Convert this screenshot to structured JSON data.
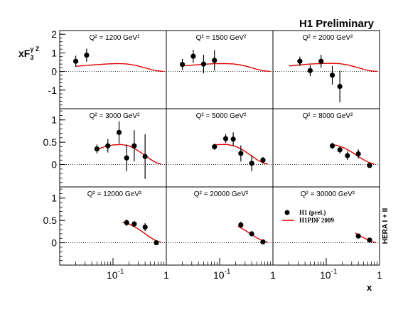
{
  "header": {
    "title": "H1 Preliminary",
    "y_axis_label_main": "xF",
    "y_axis_label_sub": "3",
    "y_axis_label_sup": "γ Z",
    "x_axis_label": "x",
    "side_label": "HERA I + II"
  },
  "legend": {
    "data_label": "H1 (prel.)",
    "curve_label": "H1PDF 2009"
  },
  "colors": {
    "data": "#000000",
    "curve": "#e00000",
    "axis": "#000000"
  },
  "chart_data": {
    "type": "scatter",
    "x_scale": "log",
    "xlim": [
      0.01,
      1
    ],
    "x_ticks": [
      "10^-1",
      "1"
    ],
    "y_ticks": {
      "row1": [
        "2",
        "1",
        "0",
        "-1"
      ],
      "row2": [
        "1",
        "0.5",
        "0"
      ],
      "row3": [
        "1",
        "0.5",
        "0"
      ]
    },
    "ylim": {
      "row1": [
        -2,
        2.2
      ],
      "row2": [
        -0.5,
        1.25
      ],
      "row3": [
        -0.5,
        1.25
      ]
    },
    "panels": [
      {
        "row": 1,
        "col": 1,
        "q2_label": "Q² = 1200 GeV²",
        "points": [
          {
            "x": 0.02,
            "y": 0.55,
            "err": 0.3
          },
          {
            "x": 0.032,
            "y": 0.88,
            "err": 0.35
          }
        ],
        "curve": [
          {
            "x": 0.02,
            "y": 0.28
          },
          {
            "x": 0.03,
            "y": 0.32
          },
          {
            "x": 0.05,
            "y": 0.37
          },
          {
            "x": 0.08,
            "y": 0.41
          },
          {
            "x": 0.12,
            "y": 0.43
          },
          {
            "x": 0.18,
            "y": 0.41
          },
          {
            "x": 0.25,
            "y": 0.35
          },
          {
            "x": 0.35,
            "y": 0.24
          },
          {
            "x": 0.5,
            "y": 0.12
          },
          {
            "x": 0.65,
            "y": 0.04
          },
          {
            "x": 0.9,
            "y": 0.0
          }
        ]
      },
      {
        "row": 1,
        "col": 2,
        "q2_label": "Q² = 1500 GeV²",
        "points": [
          {
            "x": 0.02,
            "y": 0.38,
            "err": 0.3
          },
          {
            "x": 0.032,
            "y": 0.82,
            "err": 0.35
          },
          {
            "x": 0.05,
            "y": 0.4,
            "err": 0.5
          },
          {
            "x": 0.08,
            "y": 0.6,
            "err": 0.55
          }
        ],
        "curve": [
          {
            "x": 0.02,
            "y": 0.3
          },
          {
            "x": 0.03,
            "y": 0.34
          },
          {
            "x": 0.05,
            "y": 0.39
          },
          {
            "x": 0.08,
            "y": 0.42
          },
          {
            "x": 0.12,
            "y": 0.43
          },
          {
            "x": 0.18,
            "y": 0.41
          },
          {
            "x": 0.25,
            "y": 0.35
          },
          {
            "x": 0.35,
            "y": 0.25
          },
          {
            "x": 0.5,
            "y": 0.12
          },
          {
            "x": 0.65,
            "y": 0.04
          },
          {
            "x": 0.9,
            "y": 0.0
          }
        ]
      },
      {
        "row": 1,
        "col": 3,
        "q2_label": "Q² = 2000 GeV²",
        "points": [
          {
            "x": 0.032,
            "y": 0.55,
            "err": 0.25
          },
          {
            "x": 0.05,
            "y": 0.05,
            "err": 0.3
          },
          {
            "x": 0.08,
            "y": 0.55,
            "err": 0.35
          },
          {
            "x": 0.13,
            "y": -0.2,
            "err": 0.5
          },
          {
            "x": 0.18,
            "y": -0.8,
            "err": 0.85
          }
        ],
        "curve": [
          {
            "x": 0.02,
            "y": 0.3
          },
          {
            "x": 0.03,
            "y": 0.35
          },
          {
            "x": 0.05,
            "y": 0.4
          },
          {
            "x": 0.08,
            "y": 0.43
          },
          {
            "x": 0.12,
            "y": 0.44
          },
          {
            "x": 0.18,
            "y": 0.42
          },
          {
            "x": 0.25,
            "y": 0.36
          },
          {
            "x": 0.35,
            "y": 0.25
          },
          {
            "x": 0.5,
            "y": 0.12
          },
          {
            "x": 0.65,
            "y": 0.04
          },
          {
            "x": 0.9,
            "y": 0.0
          }
        ]
      },
      {
        "row": 2,
        "col": 1,
        "q2_label": "Q² = 3000 GeV²",
        "points": [
          {
            "x": 0.05,
            "y": 0.35,
            "err": 0.1
          },
          {
            "x": 0.08,
            "y": 0.42,
            "err": 0.15
          },
          {
            "x": 0.13,
            "y": 0.72,
            "err": 0.25
          },
          {
            "x": 0.18,
            "y": 0.15,
            "err": 0.3
          },
          {
            "x": 0.25,
            "y": 0.42,
            "err": 0.35
          },
          {
            "x": 0.4,
            "y": 0.18,
            "err": 0.5
          }
        ],
        "curve": [
          {
            "x": 0.05,
            "y": 0.34
          },
          {
            "x": 0.07,
            "y": 0.4
          },
          {
            "x": 0.1,
            "y": 0.44
          },
          {
            "x": 0.14,
            "y": 0.45
          },
          {
            "x": 0.2,
            "y": 0.42
          },
          {
            "x": 0.28,
            "y": 0.33
          },
          {
            "x": 0.38,
            "y": 0.22
          },
          {
            "x": 0.5,
            "y": 0.12
          },
          {
            "x": 0.65,
            "y": 0.04
          },
          {
            "x": 0.8,
            "y": 0.01
          }
        ]
      },
      {
        "row": 2,
        "col": 2,
        "q2_label": "Q² = 5000 GeV²",
        "points": [
          {
            "x": 0.08,
            "y": 0.4,
            "err": 0.07
          },
          {
            "x": 0.13,
            "y": 0.58,
            "err": 0.1
          },
          {
            "x": 0.18,
            "y": 0.57,
            "err": 0.15
          },
          {
            "x": 0.25,
            "y": 0.25,
            "err": 0.18
          },
          {
            "x": 0.4,
            "y": 0.03,
            "err": 0.18
          },
          {
            "x": 0.65,
            "y": 0.1,
            "err": 0.07
          }
        ],
        "curve": [
          {
            "x": 0.08,
            "y": 0.44
          },
          {
            "x": 0.1,
            "y": 0.45
          },
          {
            "x": 0.14,
            "y": 0.45
          },
          {
            "x": 0.2,
            "y": 0.41
          },
          {
            "x": 0.28,
            "y": 0.32
          },
          {
            "x": 0.38,
            "y": 0.21
          },
          {
            "x": 0.5,
            "y": 0.11
          },
          {
            "x": 0.65,
            "y": 0.04
          },
          {
            "x": 0.8,
            "y": 0.01
          }
        ]
      },
      {
        "row": 2,
        "col": 3,
        "q2_label": "Q² = 8000 GeV²",
        "points": [
          {
            "x": 0.13,
            "y": 0.42,
            "err": 0.07
          },
          {
            "x": 0.18,
            "y": 0.33,
            "err": 0.08
          },
          {
            "x": 0.25,
            "y": 0.2,
            "err": 0.1
          },
          {
            "x": 0.4,
            "y": 0.24,
            "err": 0.1
          },
          {
            "x": 0.65,
            "y": -0.02,
            "err": 0.06
          }
        ],
        "curve": [
          {
            "x": 0.12,
            "y": 0.45
          },
          {
            "x": 0.16,
            "y": 0.43
          },
          {
            "x": 0.22,
            "y": 0.37
          },
          {
            "x": 0.3,
            "y": 0.28
          },
          {
            "x": 0.4,
            "y": 0.18
          },
          {
            "x": 0.5,
            "y": 0.11
          },
          {
            "x": 0.65,
            "y": 0.04
          },
          {
            "x": 0.8,
            "y": 0.01
          }
        ]
      },
      {
        "row": 3,
        "col": 1,
        "q2_label": "Q² = 12000 GeV²",
        "points": [
          {
            "x": 0.18,
            "y": 0.45,
            "err": 0.07
          },
          {
            "x": 0.25,
            "y": 0.42,
            "err": 0.07
          },
          {
            "x": 0.4,
            "y": 0.35,
            "err": 0.09
          },
          {
            "x": 0.65,
            "y": 0.0,
            "err": 0.03
          }
        ],
        "curve": [
          {
            "x": 0.15,
            "y": 0.46
          },
          {
            "x": 0.2,
            "y": 0.42
          },
          {
            "x": 0.28,
            "y": 0.33
          },
          {
            "x": 0.38,
            "y": 0.22
          },
          {
            "x": 0.5,
            "y": 0.12
          },
          {
            "x": 0.65,
            "y": 0.04
          },
          {
            "x": 0.8,
            "y": 0.01
          }
        ]
      },
      {
        "row": 3,
        "col": 2,
        "q2_label": "Q² = 20000 GeV²",
        "points": [
          {
            "x": 0.25,
            "y": 0.4,
            "err": 0.07
          },
          {
            "x": 0.4,
            "y": 0.2,
            "err": 0.05
          },
          {
            "x": 0.65,
            "y": 0.02,
            "err": 0.03
          }
        ],
        "curve": [
          {
            "x": 0.22,
            "y": 0.37
          },
          {
            "x": 0.3,
            "y": 0.28
          },
          {
            "x": 0.4,
            "y": 0.18
          },
          {
            "x": 0.5,
            "y": 0.11
          },
          {
            "x": 0.65,
            "y": 0.04
          },
          {
            "x": 0.8,
            "y": 0.01
          }
        ]
      },
      {
        "row": 3,
        "col": 3,
        "q2_label": "Q² = 30000 GeV²",
        "points": [
          {
            "x": 0.4,
            "y": 0.15,
            "err": 0.05
          },
          {
            "x": 0.65,
            "y": 0.06,
            "err": 0.03
          }
        ],
        "curve": [
          {
            "x": 0.35,
            "y": 0.22
          },
          {
            "x": 0.45,
            "y": 0.14
          },
          {
            "x": 0.55,
            "y": 0.09
          },
          {
            "x": 0.7,
            "y": 0.03
          },
          {
            "x": 0.85,
            "y": 0.0
          }
        ]
      }
    ]
  }
}
